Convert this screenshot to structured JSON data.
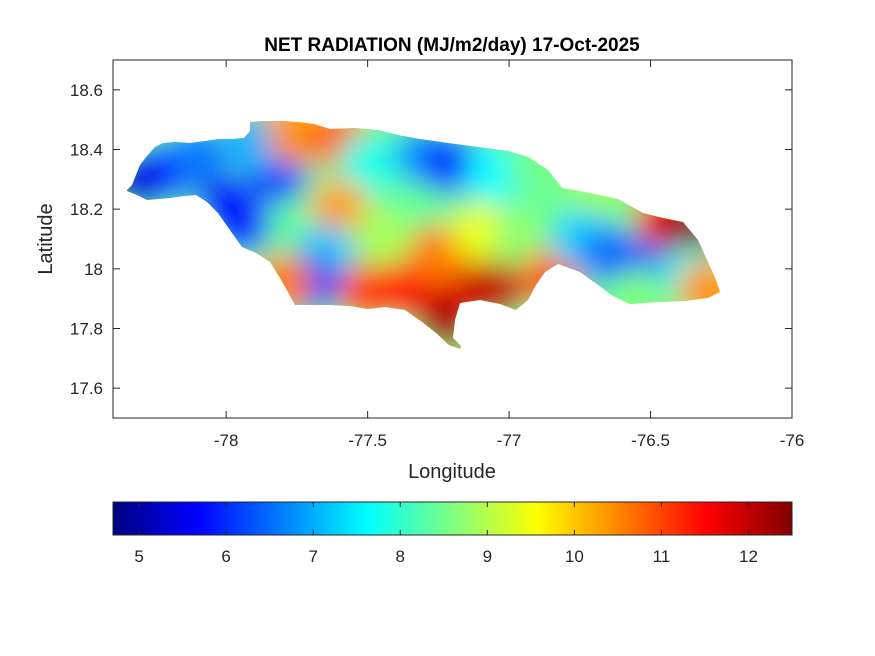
{
  "chart_data": {
    "type": "heatmap",
    "title": "NET RADIATION (MJ/m2/day) 17-Oct-2025",
    "xlabel": "Longitude",
    "ylabel": "Latitude",
    "xlim": [
      -78.4,
      -76
    ],
    "ylim": [
      17.5,
      18.7
    ],
    "xticks": [
      -78,
      -77.5,
      -77,
      -76.5,
      -76
    ],
    "xtick_labels": [
      "-78",
      "-77.5",
      "-77",
      "-76.5",
      "-76"
    ],
    "yticks": [
      17.6,
      17.8,
      18,
      18.2,
      18.4,
      18.6
    ],
    "ytick_labels": [
      "17.6",
      "17.8",
      "18",
      "18.2",
      "18.4",
      "18.6"
    ],
    "colorbar": {
      "colormap": "jet",
      "range": [
        4.7,
        12.5
      ],
      "ticks": [
        5,
        6,
        7,
        8,
        9,
        10,
        11,
        12
      ],
      "tick_labels": [
        "5",
        "6",
        "7",
        "8",
        "9",
        "10",
        "11",
        "12"
      ]
    },
    "grid": false,
    "region": "Jamaica",
    "regional_values": [
      {
        "lon": -78.3,
        "lat": 18.3,
        "value": 5.2
      },
      {
        "lon": -78.2,
        "lat": 18.33,
        "value": 5.8
      },
      {
        "lon": -78.1,
        "lat": 18.38,
        "value": 6.6
      },
      {
        "lon": -78.0,
        "lat": 18.22,
        "value": 5.6
      },
      {
        "lon": -77.95,
        "lat": 18.15,
        "value": 5.9
      },
      {
        "lon": -77.82,
        "lat": 18.32,
        "value": 6.0
      },
      {
        "lon": -77.9,
        "lat": 18.42,
        "value": 7.0
      },
      {
        "lon": -77.75,
        "lat": 18.45,
        "value": 10.4
      },
      {
        "lon": -77.6,
        "lat": 18.43,
        "value": 10.8
      },
      {
        "lon": -77.5,
        "lat": 18.35,
        "value": 7.8
      },
      {
        "lon": -77.3,
        "lat": 18.38,
        "value": 6.8
      },
      {
        "lon": -77.2,
        "lat": 18.35,
        "value": 6.0
      },
      {
        "lon": -77.05,
        "lat": 18.32,
        "value": 7.6
      },
      {
        "lon": -76.9,
        "lat": 18.35,
        "value": 8.5
      },
      {
        "lon": -76.7,
        "lat": 18.25,
        "value": 8.8
      },
      {
        "lon": -77.6,
        "lat": 18.2,
        "value": 10.3
      },
      {
        "lon": -77.45,
        "lat": 18.1,
        "value": 8.9
      },
      {
        "lon": -77.65,
        "lat": 18.05,
        "value": 7.2
      },
      {
        "lon": -77.7,
        "lat": 17.95,
        "value": 6.2
      },
      {
        "lon": -77.8,
        "lat": 17.95,
        "value": 10.6
      },
      {
        "lon": -77.5,
        "lat": 17.92,
        "value": 11.0
      },
      {
        "lon": -77.35,
        "lat": 17.93,
        "value": 11.5
      },
      {
        "lon": -77.22,
        "lat": 17.83,
        "value": 12.2
      },
      {
        "lon": -77.15,
        "lat": 17.95,
        "value": 11.8
      },
      {
        "lon": -77.05,
        "lat": 17.93,
        "value": 12.0
      },
      {
        "lon": -77.25,
        "lat": 18.05,
        "value": 10.6
      },
      {
        "lon": -77.1,
        "lat": 18.12,
        "value": 9.4
      },
      {
        "lon": -76.95,
        "lat": 18.1,
        "value": 8.7
      },
      {
        "lon": -76.85,
        "lat": 17.97,
        "value": 10.8
      },
      {
        "lon": -76.75,
        "lat": 18.1,
        "value": 7.3
      },
      {
        "lon": -76.65,
        "lat": 18.05,
        "value": 6.6
      },
      {
        "lon": -76.55,
        "lat": 18.0,
        "value": 6.2
      },
      {
        "lon": -76.45,
        "lat": 18.05,
        "value": 6.5
      },
      {
        "lon": -76.45,
        "lat": 18.17,
        "value": 11.6
      },
      {
        "lon": -76.35,
        "lat": 18.13,
        "value": 12.4
      },
      {
        "lon": -76.35,
        "lat": 17.98,
        "value": 7.8
      },
      {
        "lon": -76.55,
        "lat": 17.9,
        "value": 8.6
      },
      {
        "lon": -76.3,
        "lat": 17.93,
        "value": 10.4
      }
    ]
  }
}
